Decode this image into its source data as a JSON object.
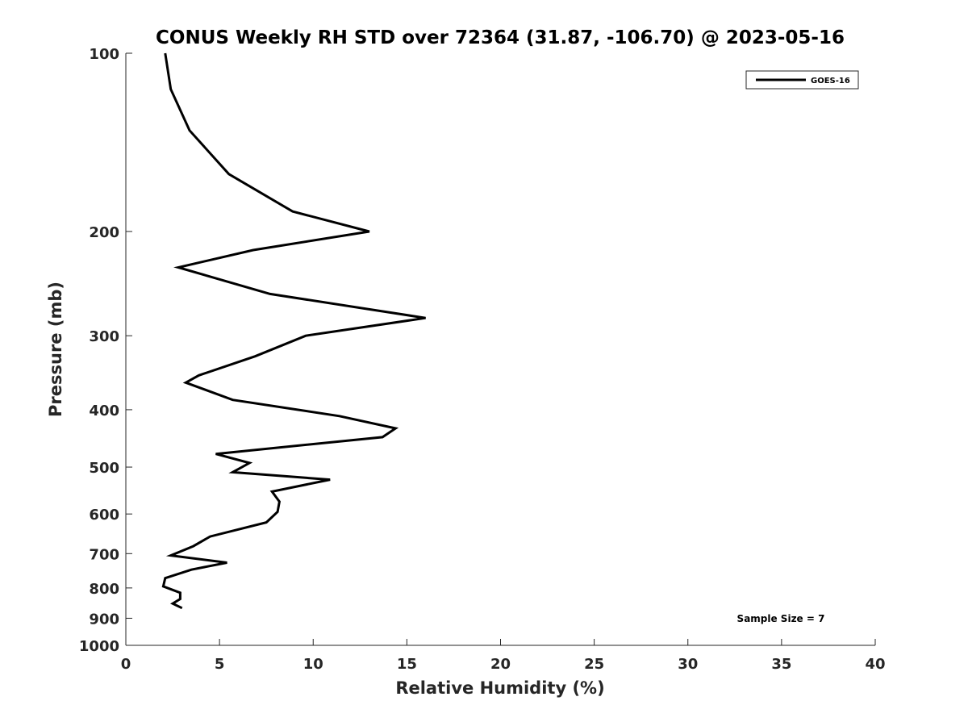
{
  "chart_data": {
    "type": "line",
    "title": "CONUS Weekly RH STD over 72364 (31.87, -106.70) @ 2023-05-16",
    "xlabel": "Relative Humidity (%)",
    "ylabel": "Pressure (mb)",
    "xlim": [
      0,
      40
    ],
    "ylim": [
      100,
      1000
    ],
    "yscale": "log",
    "y_direction": "reversed",
    "xticks": [
      0,
      5,
      10,
      15,
      20,
      25,
      30,
      35,
      40
    ],
    "yticks": [
      100,
      200,
      300,
      400,
      500,
      600,
      700,
      800,
      900,
      1000
    ],
    "grid": false,
    "legend_position": "top-right",
    "line_color": "#000000",
    "series": [
      {
        "name": "GOES-16",
        "x": [
          2.1,
          2.4,
          3.4,
          5.5,
          8.9,
          13.0,
          6.8,
          2.8,
          7.7,
          16.0,
          9.6,
          6.9,
          3.9,
          3.2,
          5.7,
          11.4,
          14.4,
          13.7,
          4.8,
          6.6,
          5.7,
          10.9,
          7.8,
          8.2,
          8.1,
          7.5,
          4.5,
          3.6,
          2.4,
          5.4,
          3.5,
          2.1,
          2.0,
          2.9,
          2.9,
          2.5,
          3.0
        ],
        "y": [
          100,
          115,
          135,
          160,
          185,
          200,
          215,
          230,
          255,
          280,
          300,
          325,
          350,
          360,
          385,
          410,
          430,
          445,
          475,
          492,
          510,
          525,
          550,
          572,
          595,
          620,
          655,
          680,
          705,
          725,
          745,
          770,
          795,
          815,
          835,
          850,
          865
        ]
      }
    ],
    "annotation": "Sample Size = 7"
  }
}
